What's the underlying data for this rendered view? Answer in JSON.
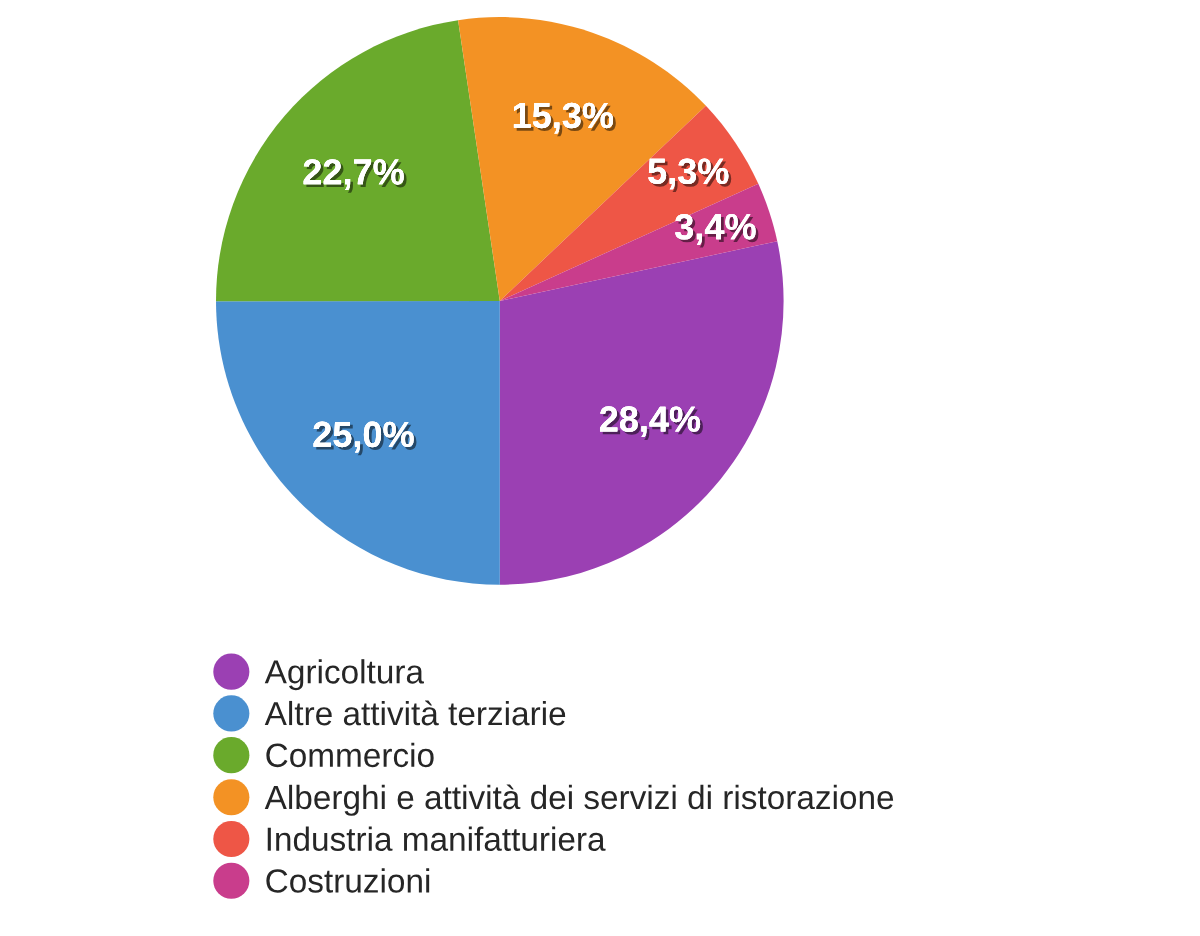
{
  "chart_data": {
    "type": "pie",
    "categories": [
      "Agricoltura",
      "Altre attività terziarie",
      "Commercio",
      "Alberghi e attività dei servizi di ristorazione",
      "Industria manifatturiera",
      "Costruzioni"
    ],
    "values": [
      28.4,
      25.0,
      22.7,
      15.3,
      5.3,
      3.4
    ],
    "value_labels": [
      "28,4%",
      "25,0%",
      "22,7%",
      "15,3%",
      "5,3%",
      "3,4%"
    ],
    "colors": [
      "#9b40b3",
      "#4a90d0",
      "#6aaa2c",
      "#f39224",
      "#ee5646",
      "#c93d8c"
    ],
    "legend": "bottom"
  }
}
